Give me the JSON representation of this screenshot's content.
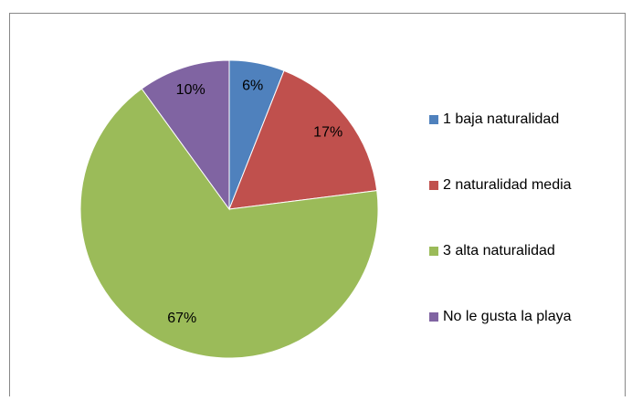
{
  "chart_data": {
    "type": "pie",
    "categories": [
      "1 baja naturalidad",
      "2 naturalidad media",
      "3 alta naturalidad",
      "No le gusta la playa"
    ],
    "values": [
      6,
      17,
      67,
      10
    ],
    "value_labels": [
      "6%",
      "17%",
      "67%",
      "10%"
    ],
    "colors": [
      "#4f81bd",
      "#c0504d",
      "#9bbb59",
      "#8064a2"
    ],
    "legend": "right"
  }
}
